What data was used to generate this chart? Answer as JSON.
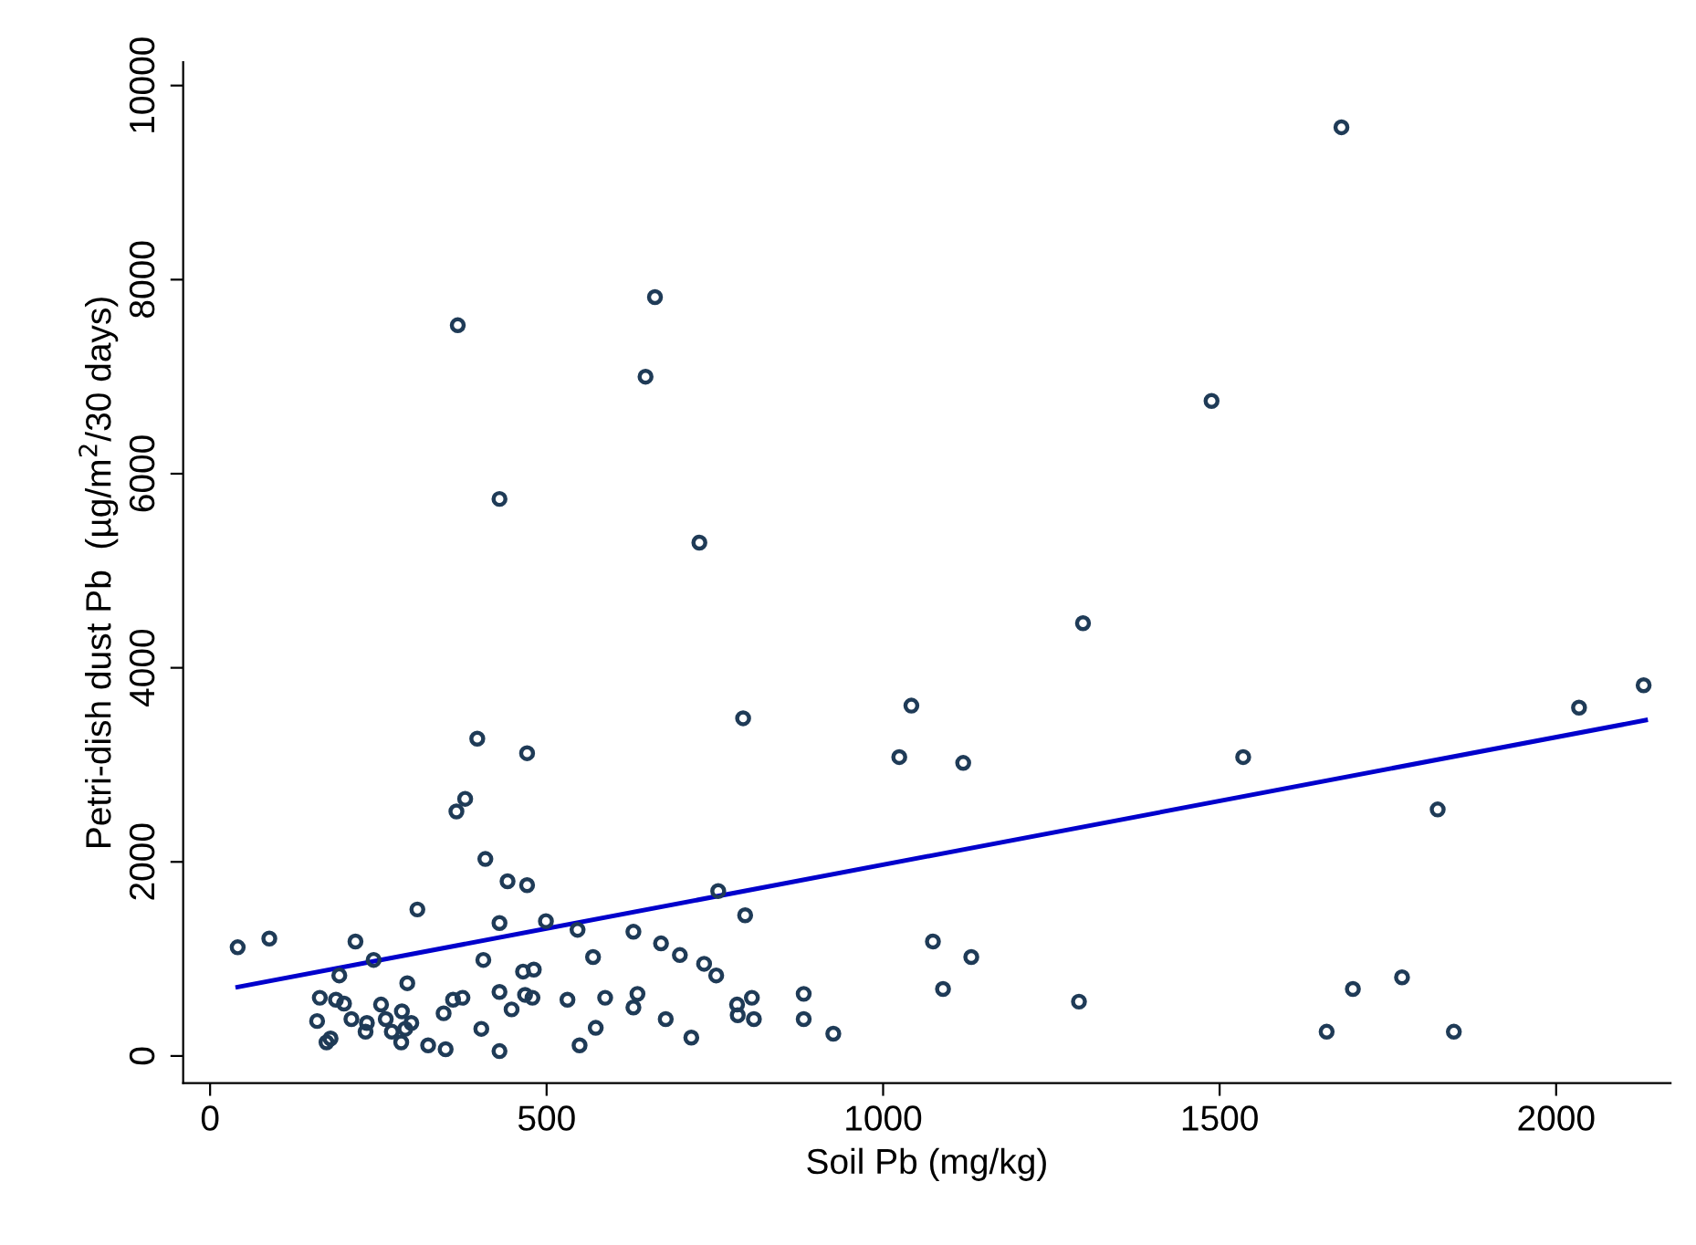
{
  "chart_data": {
    "type": "scatter",
    "xlabel": "Soil Pb (mg/kg)",
    "ylabel": "Petri-dish dust Pb  (µg/m$^{2}$/30 days)",
    "xlim": [
      -40,
      2170
    ],
    "ylim": [
      -280,
      10240
    ],
    "xticks": [
      0,
      500,
      1000,
      1500,
      2000
    ],
    "yticks": [
      0,
      2000,
      4000,
      6000,
      8000,
      10000
    ],
    "grid": false,
    "legend": false,
    "series": [
      {
        "color": "#1f3b57",
        "marker": "circle",
        "x": [
          368,
          661,
          647,
          430,
          727,
          1681,
          1488,
          1297,
          1042,
          1024,
          1119,
          1535,
          1824,
          2034,
          2130,
          1074,
          1131,
          1089,
          1291,
          1659,
          1698,
          1771,
          1848,
          41,
          88,
          216,
          243,
          192,
          308,
          293,
          397,
          471,
          792,
          366,
          379,
          409,
          442,
          471,
          755,
          795,
          430,
          499,
          546,
          629,
          670,
          698,
          734,
          752,
          569,
          406,
          465,
          481,
          163,
          187,
          199,
          159,
          210,
          233,
          231,
          254,
          261,
          270,
          285,
          299,
          290,
          284,
          173,
          179,
          324,
          350,
          347,
          361,
          375,
          430,
          403,
          430,
          448,
          468,
          479,
          531,
          549,
          573,
          587,
          629,
          635,
          677,
          715,
          783,
          784,
          805,
          808,
          882,
          882,
          926
        ],
        "values": [
          7530,
          7820,
          7000,
          5740,
          5290,
          9570,
          6750,
          4460,
          3610,
          3080,
          3020,
          3080,
          2540,
          3590,
          3820,
          1180,
          1020,
          690,
          560,
          250,
          690,
          810,
          250,
          1120,
          1210,
          1180,
          990,
          830,
          1510,
          750,
          3270,
          3120,
          3480,
          2520,
          2650,
          2030,
          1800,
          1760,
          1700,
          1450,
          1370,
          1390,
          1300,
          1280,
          1160,
          1040,
          950,
          830,
          1020,
          990,
          870,
          890,
          600,
          580,
          540,
          360,
          380,
          340,
          250,
          530,
          380,
          250,
          460,
          340,
          280,
          140,
          140,
          180,
          110,
          70,
          440,
          580,
          600,
          660,
          280,
          50,
          480,
          630,
          600,
          580,
          110,
          290,
          600,
          500,
          640,
          380,
          190,
          530,
          420,
          600,
          380,
          640,
          380,
          230
        ]
      },
      {
        "type": "line",
        "color": "#0000cc",
        "marker": "none",
        "line_style": "solid",
        "x": [
          41,
          2133
        ],
        "values": [
          710,
          3460
        ]
      }
    ]
  }
}
